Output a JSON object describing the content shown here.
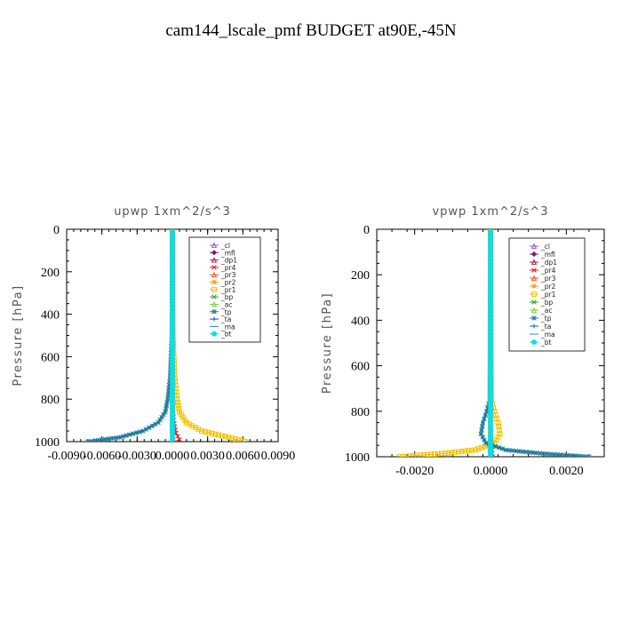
{
  "figure_title": "cam144_lscale_pmf  BUDGET at90E,-45N",
  "chart_data": [
    {
      "type": "line",
      "title": "upwp   1xm^2/s^3",
      "ylabel": "Pressure  [hPa]",
      "xlabel": "",
      "xlim": [
        -0.009,
        0.009
      ],
      "ylim": [
        1000,
        0
      ],
      "x_ticks": [
        -0.009,
        -0.006,
        -0.003,
        0.0,
        0.003,
        0.006,
        0.009
      ],
      "x_tick_labels": [
        "-0.0090",
        "-0.0060",
        "-0.0030",
        "0.0000",
        "0.0030",
        "0.0060",
        "0.0090"
      ],
      "y_ticks": [
        0,
        200,
        400,
        600,
        800,
        1000
      ],
      "y_tick_labels": [
        "0",
        "200",
        "400",
        "600",
        "800",
        "1000"
      ],
      "legend_position": "top-right",
      "series": [
        {
          "name": "_cl",
          "color": "#9b59d0",
          "marker": "triangle",
          "y": [
            0,
            200,
            400,
            600,
            800,
            900,
            960,
            1000
          ],
          "values": [
            0,
            0,
            0,
            0,
            0,
            0,
            0,
            0
          ]
        },
        {
          "name": "_mfl",
          "color": "#7a1f6f",
          "marker": "diamond",
          "y": [
            0,
            200,
            400,
            600,
            800,
            900,
            960,
            1000
          ],
          "values": [
            0,
            0,
            0,
            0,
            0,
            0,
            0,
            0
          ]
        },
        {
          "name": "_dp1",
          "color": "#b0204a",
          "marker": "triangle",
          "y": [
            0,
            200,
            400,
            600,
            800,
            900,
            960,
            1000
          ],
          "values": [
            0,
            0,
            0,
            0,
            0,
            0,
            0,
            0
          ]
        },
        {
          "name": "_pr4",
          "color": "#e02020",
          "marker": "x",
          "y": [
            0,
            800,
            900,
            960,
            990,
            1000
          ],
          "values": [
            0,
            0,
            0.0001,
            0.0003,
            0.0006,
            0.0003
          ]
        },
        {
          "name": "_pr3",
          "color": "#ff5030",
          "marker": "triangle",
          "y": [
            0,
            200,
            400,
            600,
            800,
            900,
            960,
            1000
          ],
          "values": [
            0,
            0,
            0,
            0,
            0,
            0,
            0,
            0
          ]
        },
        {
          "name": "_pr2",
          "color": "#ff9a1a",
          "marker": "star",
          "y": [
            0,
            200,
            400,
            600,
            800,
            900,
            960,
            1000
          ],
          "values": [
            0,
            0,
            0,
            0,
            0,
            0,
            0,
            0
          ]
        },
        {
          "name": "_pr1",
          "color": "#f2c200",
          "marker": "square",
          "y": [
            0,
            500,
            700,
            800,
            860,
            910,
            950,
            980,
            1000
          ],
          "values": [
            0,
            5e-05,
            0.0002,
            0.0004,
            0.0006,
            0.0012,
            0.0025,
            0.0048,
            0.0062
          ]
        },
        {
          "name": "_bp",
          "color": "#2ea82e",
          "marker": "x",
          "y": [
            0,
            200,
            400,
            600,
            800,
            900,
            960,
            1000
          ],
          "values": [
            0,
            0,
            0,
            0,
            0,
            0,
            0,
            0
          ]
        },
        {
          "name": "_ac",
          "color": "#7fd040",
          "marker": "triangle",
          "y": [
            0,
            200,
            400,
            600,
            800,
            900,
            960,
            1000
          ],
          "values": [
            0,
            0,
            0,
            0,
            0,
            0,
            0,
            0
          ]
        },
        {
          "name": "_tp",
          "color": "#1f7a9a",
          "marker": "star",
          "y": [
            0,
            500,
            700,
            800,
            860,
            910,
            950,
            980,
            1000
          ],
          "values": [
            0,
            -5e-05,
            -0.0002,
            -0.0004,
            -0.0006,
            -0.0012,
            -0.0025,
            -0.0045,
            -0.0072
          ]
        },
        {
          "name": "_ta",
          "color": "#1a50d0",
          "marker": "plus",
          "y": [
            0,
            200,
            400,
            600,
            800,
            900,
            960,
            1000
          ],
          "values": [
            0,
            0,
            0,
            0,
            0,
            0,
            0,
            0
          ]
        },
        {
          "name": "_ma",
          "color": "#3090c0",
          "marker": "dash",
          "y": [
            0,
            200,
            400,
            600,
            800,
            900,
            960,
            1000
          ],
          "values": [
            0,
            0,
            0,
            0,
            0,
            0,
            0,
            0
          ]
        },
        {
          "name": "_bt",
          "color": "#00e0f0",
          "marker": "circle",
          "y": [
            0,
            200,
            400,
            600,
            800,
            900,
            960,
            1000
          ],
          "values": [
            0,
            0,
            0,
            0,
            0,
            0,
            0,
            0
          ]
        }
      ]
    },
    {
      "type": "line",
      "title": "vpwp   1xm^2/s^3",
      "ylabel": "Pressure  [hPa]",
      "xlabel": "",
      "xlim": [
        -0.003,
        0.003
      ],
      "ylim": [
        1000,
        0
      ],
      "x_ticks": [
        -0.002,
        0.0,
        0.002
      ],
      "x_tick_labels": [
        "-0.0020",
        "0.0000",
        "0.0020"
      ],
      "y_ticks": [
        0,
        200,
        400,
        600,
        800,
        1000
      ],
      "y_tick_labels": [
        "0",
        "200",
        "400",
        "600",
        "800",
        "1000"
      ],
      "legend_position": "top-right",
      "series": [
        {
          "name": "_cl",
          "color": "#9b59d0",
          "marker": "triangle",
          "y": [
            0,
            200,
            400,
            600,
            800,
            900,
            960,
            1000
          ],
          "values": [
            0,
            0,
            0,
            0,
            0,
            0,
            0,
            0
          ]
        },
        {
          "name": "_mfl",
          "color": "#7a1f6f",
          "marker": "diamond",
          "y": [
            0,
            200,
            400,
            600,
            800,
            900,
            960,
            1000
          ],
          "values": [
            0,
            0,
            0,
            0,
            0,
            0,
            0,
            0
          ]
        },
        {
          "name": "_dp1",
          "color": "#b0204a",
          "marker": "triangle",
          "y": [
            0,
            200,
            400,
            600,
            800,
            900,
            960,
            1000
          ],
          "values": [
            0,
            0,
            0,
            0,
            0,
            0,
            0,
            0
          ]
        },
        {
          "name": "_pr4",
          "color": "#e02020",
          "marker": "x",
          "y": [
            0,
            900,
            970,
            1000
          ],
          "values": [
            0,
            0,
            3e-05,
            5e-05
          ]
        },
        {
          "name": "_pr3",
          "color": "#ff5030",
          "marker": "triangle",
          "y": [
            0,
            200,
            400,
            600,
            800,
            900,
            960,
            1000
          ],
          "values": [
            0,
            0,
            0,
            0,
            0,
            0,
            0,
            0
          ]
        },
        {
          "name": "_pr2",
          "color": "#ff9a1a",
          "marker": "star",
          "y": [
            0,
            200,
            400,
            600,
            800,
            900,
            960,
            1000
          ],
          "values": [
            0,
            0,
            0,
            0,
            0,
            0,
            0,
            0
          ]
        },
        {
          "name": "_pr1",
          "color": "#f2c200",
          "marker": "square",
          "y": [
            0,
            750,
            800,
            850,
            900,
            940,
            970,
            985,
            1000
          ],
          "values": [
            0,
            2e-05,
            0.0001,
            0.0002,
            0.00025,
            0.0001,
            -0.0004,
            -0.0012,
            -0.0024
          ]
        },
        {
          "name": "_bp",
          "color": "#2ea82e",
          "marker": "x",
          "y": [
            0,
            200,
            400,
            600,
            800,
            900,
            960,
            1000
          ],
          "values": [
            0,
            0,
            0,
            0,
            0,
            0,
            0,
            0
          ]
        },
        {
          "name": "_ac",
          "color": "#7fd040",
          "marker": "triangle",
          "y": [
            0,
            200,
            400,
            600,
            800,
            900,
            960,
            1000
          ],
          "values": [
            0,
            0,
            0,
            0,
            0,
            0,
            0,
            0
          ]
        },
        {
          "name": "_tp",
          "color": "#1f7a9a",
          "marker": "star",
          "y": [
            0,
            750,
            800,
            850,
            900,
            940,
            970,
            985,
            1000
          ],
          "values": [
            0,
            -2e-05,
            -0.0001,
            -0.0002,
            -0.00025,
            -0.00012,
            0.0004,
            0.0013,
            0.0026
          ]
        },
        {
          "name": "_ta",
          "color": "#1a50d0",
          "marker": "plus",
          "y": [
            0,
            200,
            400,
            600,
            800,
            900,
            960,
            1000
          ],
          "values": [
            0,
            0,
            0,
            0,
            0,
            0,
            0,
            0
          ]
        },
        {
          "name": "_ma",
          "color": "#3090c0",
          "marker": "dash",
          "y": [
            0,
            200,
            400,
            600,
            800,
            900,
            960,
            1000
          ],
          "values": [
            0,
            0,
            0,
            0,
            0,
            0,
            0,
            0
          ]
        },
        {
          "name": "_bt",
          "color": "#00e0f0",
          "marker": "circle",
          "y": [
            0,
            200,
            400,
            600,
            800,
            900,
            960,
            1000
          ],
          "values": [
            0,
            0,
            0,
            0,
            0,
            0,
            0,
            0
          ]
        }
      ]
    }
  ]
}
